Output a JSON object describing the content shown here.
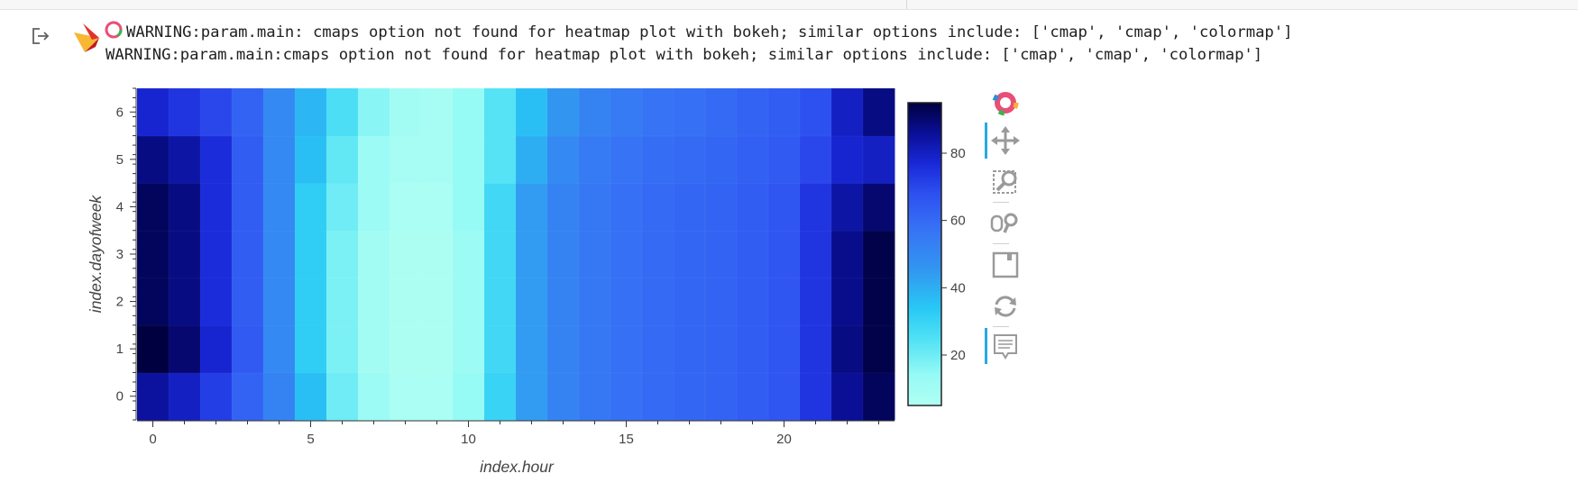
{
  "warnings": {
    "line1": "WARNING:param.main: cmaps option not found for heatmap plot with bokeh; similar options include: ['cmap', 'cmap', 'colormap']",
    "line2": "WARNING:param.main:cmaps option not found for heatmap plot with bokeh; similar options include: ['cmap', 'cmap', 'colormap']"
  },
  "toolbar": {
    "tools": [
      "bokeh-logo",
      "pan",
      "box-zoom",
      "wheel-zoom",
      "save",
      "reset",
      "hover"
    ],
    "active": [
      "pan",
      "hover"
    ]
  },
  "colors": {
    "colormap_low": "#b0fff2",
    "colormap_mid": "#2878f5",
    "colormap_high": "#000040"
  },
  "chart_data": {
    "type": "heatmap",
    "title": "",
    "xlabel": "index.hour",
    "ylabel": "index.dayofweek",
    "x": [
      0,
      1,
      2,
      3,
      4,
      5,
      6,
      7,
      8,
      9,
      10,
      11,
      12,
      13,
      14,
      15,
      16,
      17,
      18,
      19,
      20,
      21,
      22,
      23
    ],
    "y": [
      0,
      1,
      2,
      3,
      4,
      5,
      6
    ],
    "xticks": [
      0,
      5,
      10,
      15,
      20
    ],
    "yticks": [
      0,
      1,
      2,
      3,
      4,
      5,
      6
    ],
    "colorbar_ticks": [
      20,
      40,
      60,
      80
    ],
    "clim": [
      5,
      95
    ],
    "values": [
      [
        85,
        80,
        72,
        62,
        52,
        36,
        20,
        12,
        7,
        7,
        14,
        30,
        44,
        52,
        56,
        58,
        60,
        61,
        62,
        64,
        66,
        74,
        86,
        92
      ],
      [
        95,
        90,
        78,
        65,
        50,
        32,
        18,
        10,
        6,
        6,
        12,
        28,
        44,
        52,
        56,
        58,
        60,
        61,
        62,
        64,
        66,
        74,
        88,
        94
      ],
      [
        92,
        88,
        76,
        64,
        50,
        32,
        18,
        10,
        6,
        6,
        12,
        28,
        44,
        52,
        56,
        58,
        60,
        61,
        62,
        64,
        66,
        74,
        87,
        94
      ],
      [
        92,
        88,
        76,
        64,
        50,
        32,
        18,
        10,
        6,
        6,
        12,
        28,
        44,
        52,
        56,
        58,
        60,
        61,
        62,
        64,
        66,
        74,
        87,
        94
      ],
      [
        92,
        88,
        76,
        64,
        50,
        32,
        20,
        12,
        7,
        7,
        14,
        28,
        44,
        52,
        56,
        58,
        60,
        61,
        62,
        64,
        66,
        74,
        84,
        90
      ],
      [
        88,
        84,
        76,
        64,
        50,
        36,
        22,
        12,
        8,
        8,
        14,
        24,
        40,
        50,
        55,
        57,
        59,
        60,
        61,
        63,
        65,
        70,
        78,
        80
      ],
      [
        78,
        74,
        70,
        62,
        50,
        38,
        26,
        16,
        10,
        8,
        14,
        24,
        36,
        46,
        52,
        55,
        57,
        58,
        60,
        62,
        64,
        68,
        80,
        88
      ]
    ]
  }
}
